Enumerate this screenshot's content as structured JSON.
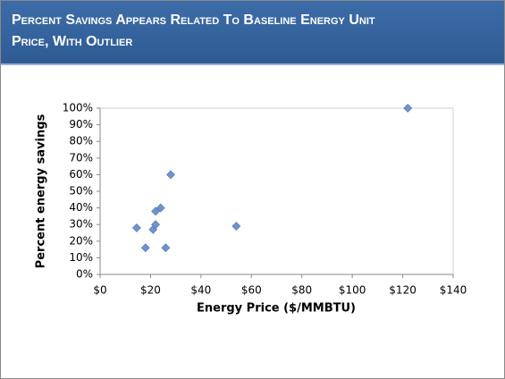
{
  "chart_data": {
    "type": "scatter",
    "title": "Percent Savings Appears Related To Baseline Energy Unit Price, With Outlier",
    "x_label": "Energy Price ($/MMBTU)",
    "y_label": "Percent energy savings",
    "x": [
      14.5,
      18,
      21,
      22,
      22,
      24,
      26,
      28,
      54,
      122
    ],
    "values": [
      28,
      16,
      27,
      30,
      38,
      40,
      16,
      60,
      29,
      100
    ],
    "color": "#6f93cc",
    "xlim": [
      0,
      140
    ],
    "xticks": [
      {
        "value": 0,
        "label": "$0"
      },
      {
        "value": 20,
        "label": "$20"
      },
      {
        "value": 40,
        "label": "$40"
      },
      {
        "value": 60,
        "label": "$60"
      },
      {
        "value": 80,
        "label": "$80"
      },
      {
        "value": 100,
        "label": "$100"
      },
      {
        "value": 120,
        "label": "$120"
      },
      {
        "value": 140,
        "label": "$140"
      }
    ],
    "ylim": [
      0,
      100
    ],
    "yticks": [
      {
        "value": 0,
        "label": "0%"
      },
      {
        "value": 10,
        "label": "10%"
      },
      {
        "value": 20,
        "label": "20%"
      },
      {
        "value": 30,
        "label": "30%"
      },
      {
        "value": 40,
        "label": "40%"
      },
      {
        "value": 50,
        "label": "50%"
      },
      {
        "value": 60,
        "label": "60%"
      },
      {
        "value": 70,
        "label": "70%"
      },
      {
        "value": 80,
        "label": "80%"
      },
      {
        "value": 90,
        "label": "90%"
      },
      {
        "value": 100,
        "label": "100%"
      }
    ],
    "grid": false
  }
}
